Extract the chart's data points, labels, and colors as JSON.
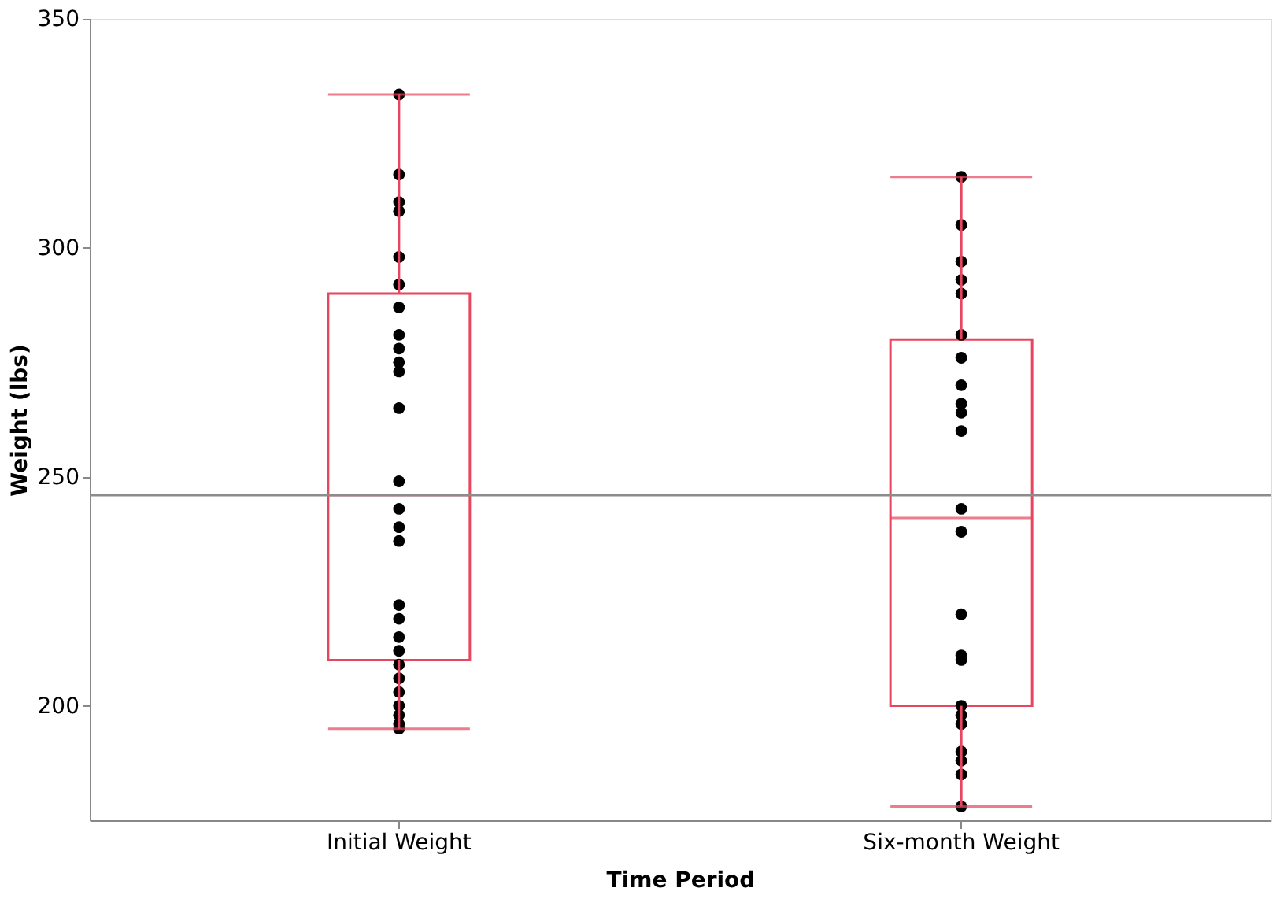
{
  "chart_data": {
    "type": "box",
    "xlabel": "Time Period",
    "ylabel": "Weight (lbs)",
    "categories": [
      "Initial Weight",
      "Six-month Weight"
    ],
    "color": "#e8455e",
    "boxes": [
      {
        "low": 195,
        "q1": 210,
        "median": 246,
        "q3": 290,
        "high": 333.5
      },
      {
        "low": 178,
        "q1": 200,
        "median": 241,
        "q3": 280,
        "high": 315.5
      }
    ],
    "series": [
      {
        "type": "scatter",
        "color": "#000000",
        "x": [
          "Initial Weight",
          "Initial Weight",
          "Initial Weight",
          "Initial Weight",
          "Initial Weight",
          "Initial Weight",
          "Initial Weight",
          "Initial Weight",
          "Initial Weight",
          "Initial Weight",
          "Initial Weight",
          "Initial Weight",
          "Initial Weight",
          "Initial Weight",
          "Initial Weight",
          "Initial Weight",
          "Initial Weight",
          "Initial Weight",
          "Initial Weight",
          "Initial Weight",
          "Initial Weight",
          "Initial Weight",
          "Initial Weight",
          "Initial Weight",
          "Initial Weight",
          "Initial Weight",
          "Initial Weight"
        ],
        "values": [
          333.5,
          316,
          310,
          308,
          298,
          292,
          287,
          281,
          278,
          275,
          273,
          265,
          249,
          243,
          239,
          236,
          222,
          219,
          215,
          212,
          209,
          206,
          203,
          200,
          198,
          196,
          195
        ]
      },
      {
        "type": "scatter",
        "color": "#000000",
        "x": [
          "Six-month Weight",
          "Six-month Weight",
          "Six-month Weight",
          "Six-month Weight",
          "Six-month Weight",
          "Six-month Weight",
          "Six-month Weight",
          "Six-month Weight",
          "Six-month Weight",
          "Six-month Weight",
          "Six-month Weight",
          "Six-month Weight",
          "Six-month Weight",
          "Six-month Weight",
          "Six-month Weight",
          "Six-month Weight",
          "Six-month Weight",
          "Six-month Weight",
          "Six-month Weight",
          "Six-month Weight",
          "Six-month Weight",
          "Six-month Weight",
          "Six-month Weight"
        ],
        "values": [
          315.5,
          305,
          297,
          293,
          290,
          281,
          276,
          270,
          266,
          264,
          260,
          243,
          238,
          220,
          211,
          210,
          200,
          198,
          196,
          190,
          188,
          185,
          178
        ]
      }
    ],
    "ref_lines": [
      {
        "axis": "y",
        "value": 246,
        "color": "#8c8c8c"
      }
    ],
    "ylim": [
      175,
      350
    ],
    "yticks": [
      200,
      250,
      300,
      350
    ],
    "grid": false,
    "marker": "circle"
  }
}
